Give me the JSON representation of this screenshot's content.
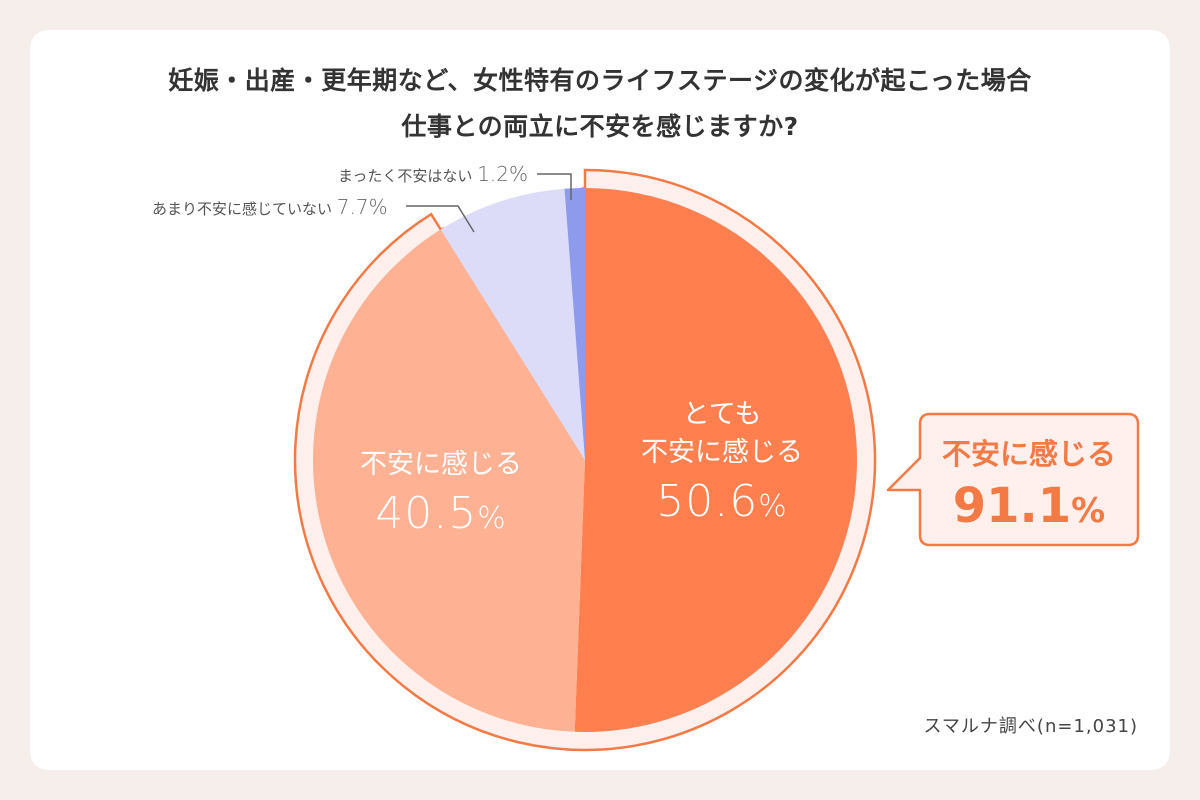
{
  "title": {
    "line1": "妊娠・出産・更年期など、女性特有のライフステージの変化が起こった場合",
    "line2": "仕事との両立に不安を感じますか?"
  },
  "slices": [
    {
      "label_line1": "とても",
      "label_line2": "不安に感じる",
      "value": "50.6",
      "unit": "%",
      "color": "#ff7f4f"
    },
    {
      "label_line1": "",
      "label_line2": "不安に感じる",
      "value": "40.5",
      "unit": "%",
      "color": "#ffb193"
    },
    {
      "label": "あまり不安に感じていない",
      "value": "7.7",
      "unit": "%",
      "color": "#dcdcf8"
    },
    {
      "label": "まったく不安はない",
      "value": "1.2",
      "unit": "%",
      "color": "#8e9aec"
    }
  ],
  "callout": {
    "label": "不安に感じる",
    "value": "91.1",
    "unit": "%",
    "border_color": "#f47a45",
    "fill_color": "#fff0ee"
  },
  "source": "スマルナ調べ(n=1,031)",
  "chart_data": {
    "type": "pie",
    "title": "妊娠・出産・更年期など、女性特有のライフステージの変化が起こった場合 仕事との両立に不安を感じますか?",
    "categories": [
      "とても不安に感じる",
      "不安に感じる",
      "あまり不安に感じていない",
      "まったく不安はない"
    ],
    "values": [
      50.6,
      40.5,
      7.7,
      1.2
    ],
    "colors": [
      "#ff7f4f",
      "#ffb193",
      "#dcdcf8",
      "#8e9aec"
    ],
    "annotations": [
      {
        "text": "不安に感じる 91.1%",
        "covers": [
          "とても不安に感じる",
          "不安に感じる"
        ]
      },
      {
        "text": "スマルナ調べ(n=1,031)"
      }
    ],
    "sample_size": 1031,
    "start_angle": "12 o'clock",
    "direction": "clockwise"
  }
}
